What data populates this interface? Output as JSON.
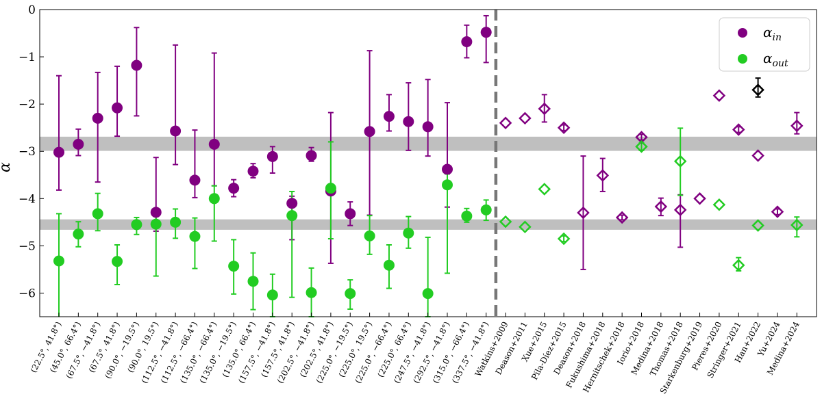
{
  "chart_data": {
    "type": "scatter",
    "title": "",
    "xlabel": "",
    "ylabel": "α",
    "ylim": [
      -6.5,
      0
    ],
    "yticks": [
      0,
      -1,
      -2,
      -3,
      -4,
      -5,
      -6
    ],
    "ytick_labels": [
      "0",
      "−1",
      "−2",
      "−3",
      "−4",
      "−5",
      "−6"
    ],
    "grid": false,
    "legend_position": "top-right",
    "categories": [
      "(22.5°, 41.8°)",
      "(45.0°, 66.4°)",
      "(67.5°, −41.8°)",
      "(67.5°, 41.8°)",
      "(90.0°, −19.5°)",
      "(90.0°, 19.5°)",
      "(112.5°, −41.8°)",
      "(112.5°, −66.4°)",
      "(135.0°, −66.4°)",
      "(135.0°, −19.5°)",
      "(135.0°, 66.4°)",
      "(157.5°, −41.8°)",
      "(157.5°, 41.8°)",
      "(202.5°, −41.8°)",
      "(202.5°, 41.8°)",
      "(225.0°, −19.5°)",
      "(225.0°, 19.5°)",
      "(225.0°, −66.4°)",
      "(225.0°, 66.4°)",
      "(247.5°, −41.8°)",
      "(292.5°, −41.8°)",
      "(315.0°, −66.4°)",
      "(337.5°, −41.8°)",
      "Watkins+2009",
      "Deason+2011",
      "Xue+2015",
      "Pila-Díez+2015",
      "Deason+2018",
      "Fukushima+2018",
      "Hernitschek+2018",
      "Iorio+2018",
      "Medina+2018",
      "Thomas+2018",
      "Starkenburg+2019",
      "Pieres+2020",
      "Stringer+2021",
      "Han+2022",
      "Yu+2024",
      "Medina+2024"
    ],
    "series": [
      {
        "name": "α_in",
        "label": "α",
        "label_sub": "in",
        "color": "#800080",
        "marker": "circle",
        "points": [
          {
            "i": 0,
            "y": -3.02,
            "lo": -3.82,
            "hi": -1.4
          },
          {
            "i": 1,
            "y": -2.85,
            "lo": -3.09,
            "hi": -2.53
          },
          {
            "i": 2,
            "y": -2.3,
            "lo": -3.65,
            "hi": -1.33
          },
          {
            "i": 3,
            "y": -2.08,
            "lo": -2.68,
            "hi": -1.2
          },
          {
            "i": 4,
            "y": -1.18,
            "lo": -2.25,
            "hi": -0.38
          },
          {
            "i": 5,
            "y": -4.29,
            "lo": -4.69,
            "hi": -3.13
          },
          {
            "i": 6,
            "y": -2.57,
            "lo": -3.28,
            "hi": -0.75
          },
          {
            "i": 7,
            "y": -3.61,
            "lo": -3.98,
            "hi": -2.55
          },
          {
            "i": 8,
            "y": -2.85,
            "lo": -3.73,
            "hi": -0.92
          },
          {
            "i": 9,
            "y": -3.78,
            "lo": -3.96,
            "hi": -3.6
          },
          {
            "i": 10,
            "y": -3.42,
            "lo": -3.56,
            "hi": -3.26
          },
          {
            "i": 11,
            "y": -3.11,
            "lo": -3.46,
            "hi": -2.9
          },
          {
            "i": 12,
            "y": -4.1,
            "lo": -4.87,
            "hi": -3.95
          },
          {
            "i": 13,
            "y": -3.09,
            "lo": -3.21,
            "hi": -2.92
          },
          {
            "i": 14,
            "y": -3.84,
            "lo": -5.37,
            "hi": -2.18
          },
          {
            "i": 15,
            "y": -4.32,
            "lo": -4.57,
            "hi": -4.07
          },
          {
            "i": 16,
            "y": -2.58,
            "lo": -4.35,
            "hi": -0.87
          },
          {
            "i": 17,
            "y": -2.26,
            "lo": -2.57,
            "hi": -1.8
          },
          {
            "i": 18,
            "y": -2.37,
            "lo": -2.98,
            "hi": -1.55
          },
          {
            "i": 19,
            "y": -2.48,
            "lo": -3.1,
            "hi": -1.48
          },
          {
            "i": 20,
            "y": -3.38,
            "lo": -4.18,
            "hi": -1.97
          },
          {
            "i": 21,
            "y": -0.68,
            "lo": -1.02,
            "hi": -0.33
          },
          {
            "i": 22,
            "y": -0.48,
            "lo": -1.12,
            "hi": -0.13
          }
        ],
        "literature": [
          {
            "i": 23,
            "y": -2.4,
            "lo": -2.4,
            "hi": -2.4
          },
          {
            "i": 24,
            "y": -2.3,
            "lo": -2.3,
            "hi": -2.3
          },
          {
            "i": 25,
            "y": -2.1,
            "lo": -2.38,
            "hi": -1.8
          },
          {
            "i": 26,
            "y": -2.5,
            "lo": -2.56,
            "hi": -2.44
          },
          {
            "i": 27,
            "y": -4.3,
            "lo": -5.5,
            "hi": -3.1
          },
          {
            "i": 28,
            "y": -3.51,
            "lo": -3.85,
            "hi": -3.15
          },
          {
            "i": 29,
            "y": -4.4,
            "lo": -4.45,
            "hi": -4.35
          },
          {
            "i": 30,
            "y": -2.7,
            "lo": -2.76,
            "hi": -2.64
          },
          {
            "i": 31,
            "y": -4.17,
            "lo": -4.36,
            "hi": -3.99
          },
          {
            "i": 32,
            "y": -4.24,
            "lo": -5.03,
            "hi": -3.92
          },
          {
            "i": 33,
            "y": -4.0,
            "lo": -4.0,
            "hi": -4.0
          },
          {
            "i": 34,
            "y": -1.82,
            "lo": -1.82,
            "hi": -1.82
          },
          {
            "i": 35,
            "y": -2.54,
            "lo": -2.6,
            "hi": -2.48
          },
          {
            "i": 36,
            "y": -3.09,
            "lo": -3.09,
            "hi": -3.09
          },
          {
            "i": 37,
            "y": -4.28,
            "lo": -4.34,
            "hi": -4.22
          },
          {
            "i": 38,
            "y": -2.46,
            "lo": -2.63,
            "hi": -2.18
          }
        ]
      },
      {
        "name": "α_out",
        "label": "α",
        "label_sub": "out",
        "color": "#22cc22",
        "marker": "circle",
        "points": [
          {
            "i": 0,
            "y": -5.32,
            "lo": -6.55,
            "hi": -4.32
          },
          {
            "i": 1,
            "y": -4.75,
            "lo": -5.02,
            "hi": -4.49
          },
          {
            "i": 2,
            "y": -4.32,
            "lo": -4.68,
            "hi": -3.89
          },
          {
            "i": 3,
            "y": -5.33,
            "lo": -5.82,
            "hi": -4.98
          },
          {
            "i": 4,
            "y": -4.55,
            "lo": -4.76,
            "hi": -4.4
          },
          {
            "i": 5,
            "y": -4.54,
            "lo": -5.64,
            "hi": -4.38
          },
          {
            "i": 6,
            "y": -4.5,
            "lo": -4.84,
            "hi": -4.22
          },
          {
            "i": 7,
            "y": -4.8,
            "lo": -5.48,
            "hi": -4.41
          },
          {
            "i": 8,
            "y": -4.0,
            "lo": -4.9,
            "hi": -3.73
          },
          {
            "i": 9,
            "y": -5.43,
            "lo": -6.02,
            "hi": -4.87
          },
          {
            "i": 10,
            "y": -5.75,
            "lo": -6.35,
            "hi": -5.15
          },
          {
            "i": 11,
            "y": -6.04,
            "lo": -6.5,
            "hi": -5.6
          },
          {
            "i": 12,
            "y": -4.36,
            "lo": -6.09,
            "hi": -3.85
          },
          {
            "i": 13,
            "y": -5.99,
            "lo": -6.5,
            "hi": -5.47
          },
          {
            "i": 14,
            "y": -3.78,
            "lo": -4.85,
            "hi": -2.8
          },
          {
            "i": 15,
            "y": -6.01,
            "lo": -6.34,
            "hi": -5.72
          },
          {
            "i": 16,
            "y": -4.79,
            "lo": -5.18,
            "hi": -4.36
          },
          {
            "i": 17,
            "y": -5.41,
            "lo": -5.9,
            "hi": -4.98
          },
          {
            "i": 18,
            "y": -4.73,
            "lo": -5.05,
            "hi": -4.38
          },
          {
            "i": 19,
            "y": -6.01,
            "lo": -6.5,
            "hi": -4.82
          },
          {
            "i": 20,
            "y": -3.71,
            "lo": -5.58,
            "hi": -3.48
          },
          {
            "i": 21,
            "y": -4.37,
            "lo": -4.5,
            "hi": -4.21
          },
          {
            "i": 22,
            "y": -4.24,
            "lo": -4.46,
            "hi": -4.03
          }
        ],
        "literature": [
          {
            "i": 23,
            "y": -4.49,
            "lo": -4.49,
            "hi": -4.49
          },
          {
            "i": 24,
            "y": -4.6,
            "lo": -4.6,
            "hi": -4.6
          },
          {
            "i": 25,
            "y": -3.8,
            "lo": -3.8,
            "hi": -3.8
          },
          {
            "i": 26,
            "y": -4.85,
            "lo": -4.91,
            "hi": -4.79
          },
          {
            "i": 30,
            "y": -2.9,
            "lo": -2.98,
            "hi": -2.82
          },
          {
            "i": 32,
            "y": -3.21,
            "lo": -3.93,
            "hi": -2.51
          },
          {
            "i": 34,
            "y": -4.13,
            "lo": -4.13,
            "hi": -4.13
          },
          {
            "i": 35,
            "y": -5.41,
            "lo": -5.53,
            "hi": -5.25
          },
          {
            "i": 36,
            "y": -4.57,
            "lo": -4.57,
            "hi": -4.57
          },
          {
            "i": 38,
            "y": -4.56,
            "lo": -4.81,
            "hi": -4.39
          }
        ]
      },
      {
        "name": "Han+2022 single",
        "color": "#000000",
        "marker": "diamond-open",
        "literature": [
          {
            "i": 36,
            "y": -1.7,
            "lo": -1.85,
            "hi": -1.45
          }
        ]
      }
    ],
    "bands": [
      {
        "lo": -2.99,
        "hi": -2.69,
        "color": "#aaaaaa"
      },
      {
        "lo": -4.66,
        "hi": -4.44,
        "color": "#aaaaaa"
      }
    ],
    "divider_after_index": 22
  }
}
